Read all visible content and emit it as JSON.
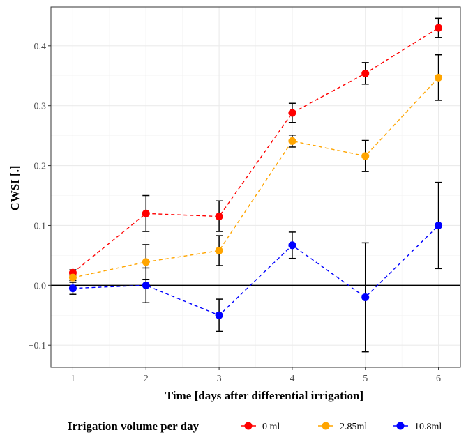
{
  "chart_data": {
    "type": "line",
    "xlabel": "Time [days after differential irrigation]",
    "ylabel": "CWSI [.]",
    "x": [
      1,
      2,
      3,
      4,
      5,
      6
    ],
    "xlim": [
      0.7,
      6.3
    ],
    "ylim": [
      -0.137,
      0.465
    ],
    "xticks": [
      1,
      2,
      3,
      4,
      5,
      6
    ],
    "yticks": [
      -0.1,
      0.0,
      0.1,
      0.2,
      0.3,
      0.4
    ],
    "ytick_labels": [
      "−0.1",
      "0.0",
      "0.1",
      "0.2",
      "0.3",
      "0.4"
    ],
    "hline": 0,
    "grid": true,
    "legend": {
      "title": "Irrigation volume per day",
      "position": "bottom"
    },
    "series": [
      {
        "name": "0 ml",
        "color": "#ff0000",
        "values": [
          0.021,
          0.12,
          0.115,
          0.288,
          0.354,
          0.43
        ],
        "err_low": [
          0.016,
          0.09,
          0.09,
          0.272,
          0.336,
          0.414
        ],
        "err_high": [
          0.026,
          0.15,
          0.141,
          0.304,
          0.372,
          0.446
        ]
      },
      {
        "name": "2.85ml",
        "color": "#ffa500",
        "values": [
          0.013,
          0.039,
          0.058,
          0.241,
          0.216,
          0.347
        ],
        "err_low": [
          0.008,
          0.01,
          0.033,
          0.231,
          0.19,
          0.309
        ],
        "err_high": [
          0.018,
          0.068,
          0.083,
          0.251,
          0.242,
          0.385
        ]
      },
      {
        "name": "10.8ml",
        "color": "#0000ff",
        "values": [
          -0.005,
          0.0,
          -0.05,
          0.067,
          -0.02,
          0.1
        ],
        "err_low": [
          -0.015,
          -0.029,
          -0.077,
          0.045,
          -0.111,
          0.028
        ],
        "err_high": [
          0.005,
          0.029,
          -0.023,
          0.089,
          0.071,
          0.172
        ]
      }
    ]
  }
}
